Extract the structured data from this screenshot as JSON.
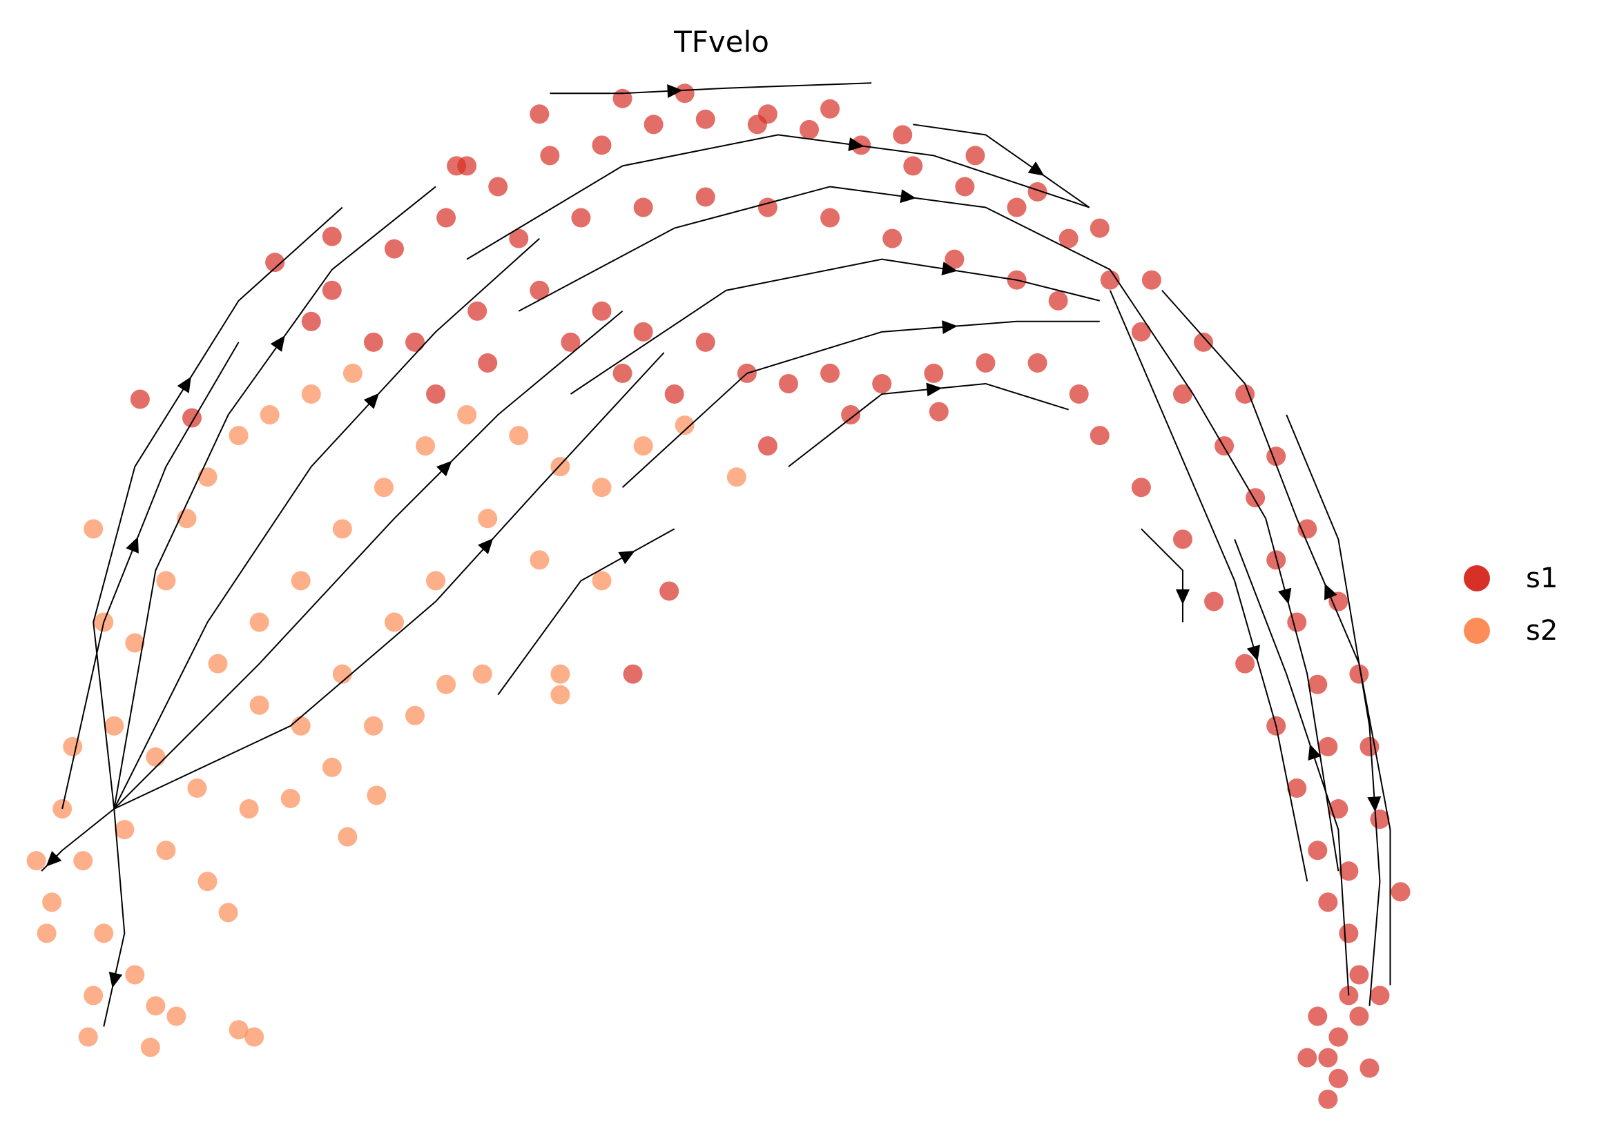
{
  "chart_data": {
    "type": "scatter",
    "title": "TFvelo",
    "xlabel": "",
    "ylabel": "",
    "xlim": [
      0,
      155
    ],
    "ylim": [
      0,
      110
    ],
    "grid": false,
    "axes_visible": false,
    "legend_placement": "right",
    "series": [
      {
        "name": "s1",
        "color": "#d73027",
        "points": [
          [
            32,
            82
          ],
          [
            38,
            86
          ],
          [
            43,
            89
          ],
          [
            48,
            92
          ],
          [
            53,
            95
          ],
          [
            58,
            96
          ],
          [
            63,
            98
          ],
          [
            68,
            98.5
          ],
          [
            73,
            98
          ],
          [
            78,
            97.5
          ],
          [
            83,
            96
          ],
          [
            88,
            94
          ],
          [
            93,
            92
          ],
          [
            98,
            90
          ],
          [
            103,
            87
          ],
          [
            107,
            83
          ],
          [
            110,
            78
          ],
          [
            114,
            72
          ],
          [
            118,
            67
          ],
          [
            121,
            62
          ],
          [
            123,
            56
          ],
          [
            125,
            50
          ],
          [
            127,
            44
          ],
          [
            128,
            38
          ],
          [
            129,
            32
          ],
          [
            130,
            26
          ],
          [
            130,
            20
          ],
          [
            130,
            14
          ],
          [
            129,
            10
          ],
          [
            129,
            6
          ],
          [
            128,
            8
          ],
          [
            131,
            12
          ],
          [
            40,
            77
          ],
          [
            46,
            80
          ],
          [
            52,
            82
          ],
          [
            58,
            80
          ],
          [
            62,
            78
          ],
          [
            68,
            77
          ],
          [
            72,
            74
          ],
          [
            76,
            73
          ],
          [
            80,
            74
          ],
          [
            85,
            73
          ],
          [
            90,
            74
          ],
          [
            95,
            75
          ],
          [
            100,
            75
          ],
          [
            104,
            72
          ],
          [
            106,
            68
          ],
          [
            110,
            63
          ],
          [
            114,
            58
          ],
          [
            117,
            52
          ],
          [
            120,
            46
          ],
          [
            123,
            40
          ],
          [
            125,
            34
          ],
          [
            127,
            28
          ],
          [
            128,
            23
          ],
          [
            45,
            94
          ],
          [
            52,
            99
          ],
          [
            60,
            100.5
          ],
          [
            66,
            101
          ],
          [
            74,
            99
          ],
          [
            80,
            99.5
          ],
          [
            87,
            97
          ],
          [
            94,
            95
          ],
          [
            100,
            91.5
          ],
          [
            106,
            88
          ],
          [
            111,
            83
          ],
          [
            116,
            77
          ],
          [
            120,
            72
          ],
          [
            123,
            66
          ],
          [
            126,
            59
          ],
          [
            129,
            52
          ],
          [
            131,
            45
          ],
          [
            132,
            38
          ],
          [
            133,
            31
          ],
          [
            135,
            24
          ],
          [
            13.5,
            71.5
          ],
          [
            18.5,
            69.7
          ],
          [
            26.5,
            84.7
          ],
          [
            32,
            87.2
          ],
          [
            44,
            94
          ],
          [
            61,
            45
          ],
          [
            64.5,
            53
          ],
          [
            90.5,
            70.3
          ],
          [
            74,
            67
          ],
          [
            82,
            70
          ],
          [
            128,
            4
          ],
          [
            126,
            8
          ],
          [
            132,
            7
          ],
          [
            131,
            16
          ],
          [
            133,
            14
          ],
          [
            127,
            12
          ],
          [
            50,
            87
          ],
          [
            56,
            89
          ],
          [
            62,
            90
          ],
          [
            68,
            91
          ],
          [
            74,
            90
          ],
          [
            80,
            89
          ],
          [
            86,
            87
          ],
          [
            92,
            85
          ],
          [
            98,
            83
          ],
          [
            102,
            81
          ],
          [
            55,
            77
          ],
          [
            60,
            74
          ],
          [
            65,
            72
          ],
          [
            47,
            75
          ],
          [
            42,
            72
          ],
          [
            36,
            77
          ],
          [
            30,
            79
          ]
        ]
      },
      {
        "name": "s2",
        "color": "#fc8d59",
        "points": [
          [
            6,
            32
          ],
          [
            8,
            27
          ],
          [
            5,
            23
          ],
          [
            10,
            20
          ],
          [
            13,
            16
          ],
          [
            9,
            14
          ],
          [
            15,
            13
          ],
          [
            17,
            12
          ],
          [
            8.5,
            10
          ],
          [
            14.5,
            9
          ],
          [
            23,
            10.7
          ],
          [
            24.5,
            10
          ],
          [
            12,
            30
          ],
          [
            16,
            28
          ],
          [
            20,
            25
          ],
          [
            22,
            22
          ],
          [
            7,
            38
          ],
          [
            11,
            40
          ],
          [
            15,
            37
          ],
          [
            19,
            34
          ],
          [
            24,
            32
          ],
          [
            28,
            33
          ],
          [
            32,
            36
          ],
          [
            36,
            40
          ],
          [
            40,
            41
          ],
          [
            43,
            44
          ],
          [
            9,
            59
          ],
          [
            10,
            50
          ],
          [
            13,
            48
          ],
          [
            16,
            54
          ],
          [
            18,
            60
          ],
          [
            20,
            64
          ],
          [
            23,
            68
          ],
          [
            26,
            70
          ],
          [
            30,
            72
          ],
          [
            34,
            74
          ],
          [
            21,
            46
          ],
          [
            25,
            50
          ],
          [
            29,
            54
          ],
          [
            33,
            59
          ],
          [
            37,
            63
          ],
          [
            41,
            67
          ],
          [
            45,
            70
          ],
          [
            50,
            68
          ],
          [
            54,
            65
          ],
          [
            58,
            63
          ],
          [
            62,
            67
          ],
          [
            66,
            69
          ],
          [
            52,
            56
          ],
          [
            47,
            60
          ],
          [
            42,
            54
          ],
          [
            38,
            50
          ],
          [
            33,
            45
          ],
          [
            29,
            40
          ],
          [
            25,
            42
          ],
          [
            54,
            45
          ],
          [
            46.5,
            45
          ],
          [
            33.5,
            29.3
          ],
          [
            36.3,
            33.3
          ],
          [
            71,
            64
          ],
          [
            58,
            54
          ],
          [
            54,
            43
          ],
          [
            3.5,
            27
          ],
          [
            4.5,
            20
          ]
        ]
      }
    ],
    "streamlines": [
      [
        [
          11,
          32
        ],
        [
          20,
          50
        ],
        [
          30,
          65
        ],
        [
          42,
          78
        ],
        [
          52,
          87
        ]
      ],
      [
        [
          11,
          32
        ],
        [
          25,
          46
        ],
        [
          38,
          60
        ],
        [
          48,
          70
        ],
        [
          60,
          80
        ]
      ],
      [
        [
          11,
          32
        ],
        [
          28,
          40
        ],
        [
          42,
          52
        ],
        [
          52,
          63
        ],
        [
          64,
          76
        ]
      ],
      [
        [
          11,
          32
        ],
        [
          15,
          55
        ],
        [
          22,
          70
        ],
        [
          32,
          84
        ],
        [
          42,
          92
        ]
      ],
      [
        [
          11,
          32
        ],
        [
          9,
          50
        ],
        [
          13,
          65
        ],
        [
          23,
          81
        ],
        [
          33,
          90
        ]
      ],
      [
        [
          6,
          32
        ],
        [
          10,
          50
        ],
        [
          16,
          65
        ],
        [
          23,
          77
        ]
      ],
      [
        [
          11,
          32
        ],
        [
          12,
          20
        ],
        [
          10,
          11
        ]
      ],
      [
        [
          11,
          32
        ],
        [
          6,
          28
        ],
        [
          4,
          26
        ]
      ],
      [
        [
          45,
          85
        ],
        [
          60,
          94
        ],
        [
          75,
          97
        ],
        [
          90,
          95
        ],
        [
          105,
          90
        ]
      ],
      [
        [
          50,
          80
        ],
        [
          65,
          88
        ],
        [
          80,
          92
        ],
        [
          95,
          90
        ],
        [
          107,
          84
        ]
      ],
      [
        [
          55,
          72
        ],
        [
          70,
          82
        ],
        [
          85,
          85
        ],
        [
          98,
          83
        ],
        [
          106,
          81
        ]
      ],
      [
        [
          60,
          63
        ],
        [
          72,
          74
        ],
        [
          85,
          78
        ],
        [
          98,
          79
        ],
        [
          106,
          79
        ]
      ],
      [
        [
          76,
          65
        ],
        [
          85,
          72
        ],
        [
          95,
          73
        ],
        [
          103,
          70.5
        ]
      ],
      [
        [
          107,
          84
        ],
        [
          115,
          72
        ],
        [
          122,
          60
        ],
        [
          126,
          45
        ],
        [
          129,
          26
        ]
      ],
      [
        [
          107,
          82
        ],
        [
          113,
          68
        ],
        [
          119,
          54
        ],
        [
          123,
          40
        ],
        [
          126,
          25
        ]
      ],
      [
        [
          134,
          15
        ],
        [
          134,
          30
        ],
        [
          131,
          46
        ],
        [
          125,
          60
        ],
        [
          120,
          73
        ],
        [
          112,
          82
        ]
      ],
      [
        [
          130,
          14
        ],
        [
          129,
          30
        ],
        [
          124,
          45
        ],
        [
          119,
          58
        ]
      ],
      [
        [
          124,
          70
        ],
        [
          129,
          58
        ],
        [
          132,
          40
        ],
        [
          133,
          25
        ],
        [
          132,
          13
        ]
      ],
      [
        [
          110,
          59
        ],
        [
          114,
          55
        ],
        [
          114,
          50
        ]
      ],
      [
        [
          48,
          43
        ],
        [
          56,
          54
        ],
        [
          65,
          59
        ]
      ],
      [
        [
          53,
          101
        ],
        [
          60,
          101
        ],
        [
          70,
          101.5
        ],
        [
          84,
          102
        ]
      ],
      [
        [
          88,
          98
        ],
        [
          95,
          97
        ],
        [
          105,
          90
        ]
      ]
    ]
  },
  "legend": [
    {
      "label": "s1",
      "color": "#d73027"
    },
    {
      "label": "s2",
      "color": "#fc8d59"
    }
  ]
}
